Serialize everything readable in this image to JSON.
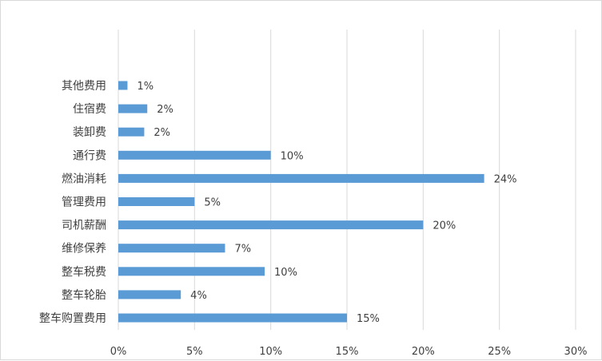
{
  "chart_data": {
    "type": "bar",
    "orientation": "horizontal",
    "title": "",
    "xlabel": "",
    "ylabel": "",
    "categories": [
      "其他费用",
      "住宿费",
      "装卸费",
      "通行费",
      "燃油消耗",
      "管理费用",
      "司机薪酬",
      "维修保养",
      "整车税费",
      "整车轮胎",
      "整车购置费用"
    ],
    "values": [
      0.6,
      1.9,
      1.7,
      10.0,
      24.0,
      5.0,
      20.0,
      7.0,
      9.6,
      4.1,
      15.0
    ],
    "data_labels": [
      "1%",
      "2%",
      "2%",
      "10%",
      "24%",
      "5%",
      "20%",
      "7%",
      "10%",
      "4%",
      "15%"
    ],
    "xlim": [
      0,
      30
    ],
    "xticks": [
      0,
      5,
      10,
      15,
      20,
      25,
      30
    ],
    "xtick_labels": [
      "0%",
      "5%",
      "10%",
      "15%",
      "20%",
      "25%",
      "30%"
    ],
    "grid": "vertical",
    "legend": "none",
    "colors": {
      "bar": "#5b9bd5",
      "grid": "#d9d9d9",
      "text": "#404040"
    }
  }
}
